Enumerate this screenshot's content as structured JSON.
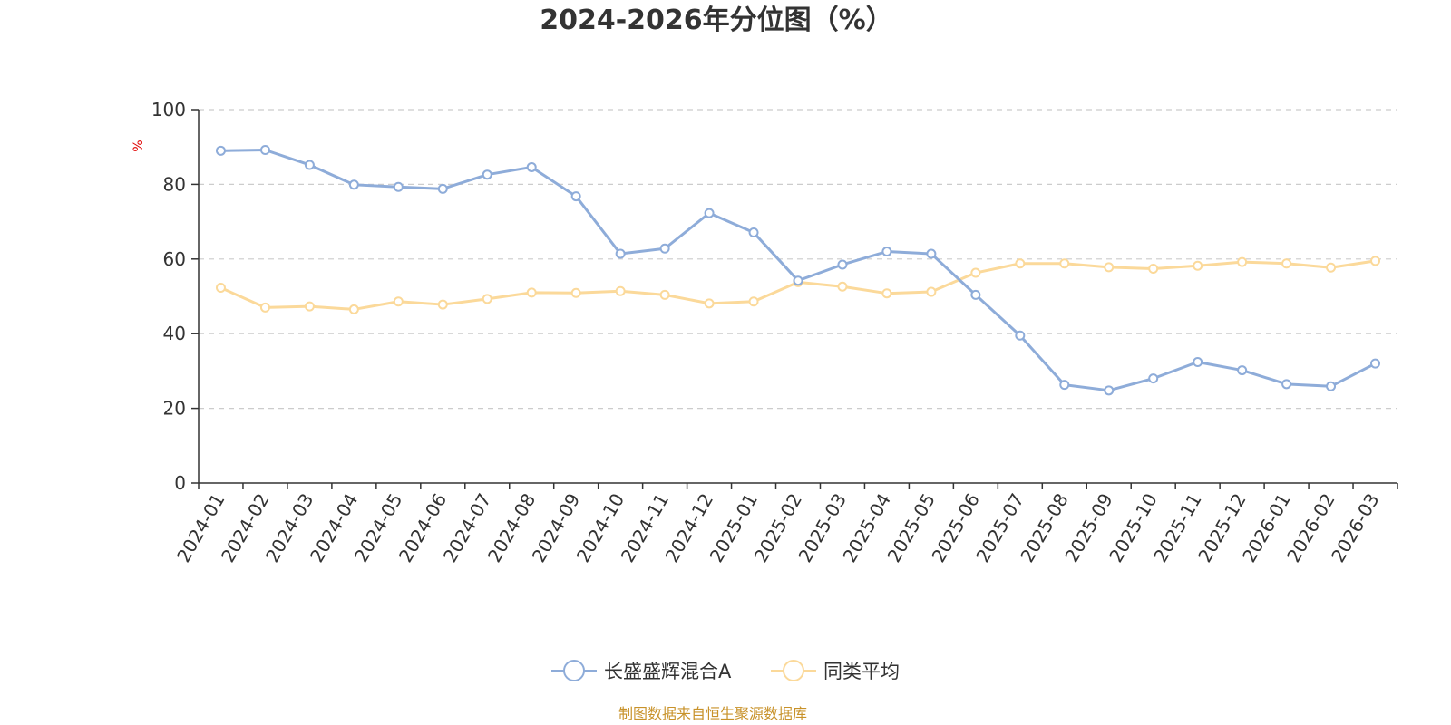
{
  "chart_data": {
    "type": "line",
    "title": "2024-2026年分位图（%）",
    "ylabel": "%",
    "xlabel": "",
    "ylim": [
      0,
      100
    ],
    "yticks": [
      0,
      20,
      40,
      60,
      80,
      100
    ],
    "grid": true,
    "legend_position": "bottom-center",
    "categories": [
      "2024-01",
      "2024-02",
      "2024-03",
      "2024-04",
      "2024-05",
      "2024-06",
      "2024-07",
      "2024-08",
      "2024-09",
      "2024-10",
      "2024-11",
      "2024-12",
      "2025-01",
      "2025-02",
      "2025-03",
      "2025-04",
      "2025-05",
      "2025-06",
      "2025-07",
      "2025-08",
      "2025-09",
      "2025-10",
      "2025-11",
      "2025-12",
      "2026-01",
      "2026-02",
      "2026-03"
    ],
    "series": [
      {
        "name": "长盛盛辉混合A",
        "color": "#8eacd9",
        "values": [
          89.0,
          89.2,
          85.2,
          79.9,
          79.3,
          78.8,
          82.6,
          84.6,
          76.8,
          61.4,
          62.8,
          72.3,
          67.1,
          54.2,
          58.5,
          62.0,
          61.4,
          50.4,
          39.5,
          26.3,
          24.8,
          28.0,
          32.4,
          30.2,
          26.5,
          25.9,
          32.0
        ]
      },
      {
        "name": "同类平均",
        "color": "#fbd99a",
        "values": [
          52.3,
          47.0,
          47.3,
          46.5,
          48.6,
          47.8,
          49.3,
          51.0,
          50.9,
          51.4,
          50.4,
          48.1,
          48.6,
          53.8,
          52.6,
          50.8,
          51.2,
          56.3,
          58.8,
          58.8,
          57.8,
          57.4,
          58.2,
          59.2,
          58.8,
          57.7,
          59.5
        ]
      }
    ]
  },
  "source_text": "制图数据来自恒生聚源数据库"
}
